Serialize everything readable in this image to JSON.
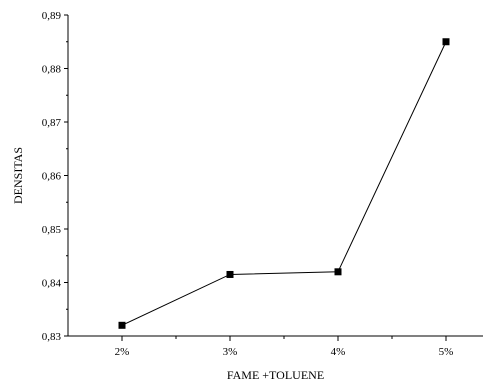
{
  "chart_data": {
    "type": "line",
    "xlabel": "FAME +TOLUENE",
    "ylabel": "DENSITAS",
    "categories": [
      "2%",
      "3%",
      "4%",
      "5%"
    ],
    "series": [
      {
        "values": [
          0.832,
          0.8415,
          0.842,
          0.885
        ]
      }
    ],
    "ylim": [
      0.83,
      0.89
    ],
    "yticks": [
      "0,83",
      "0,84",
      "0,85",
      "0,86",
      "0,87",
      "0,88",
      "0,89"
    ],
    "grid": false,
    "legend": "none",
    "colors": {
      "line": "#000000",
      "marker": "#000000",
      "axis": "#000000"
    }
  }
}
